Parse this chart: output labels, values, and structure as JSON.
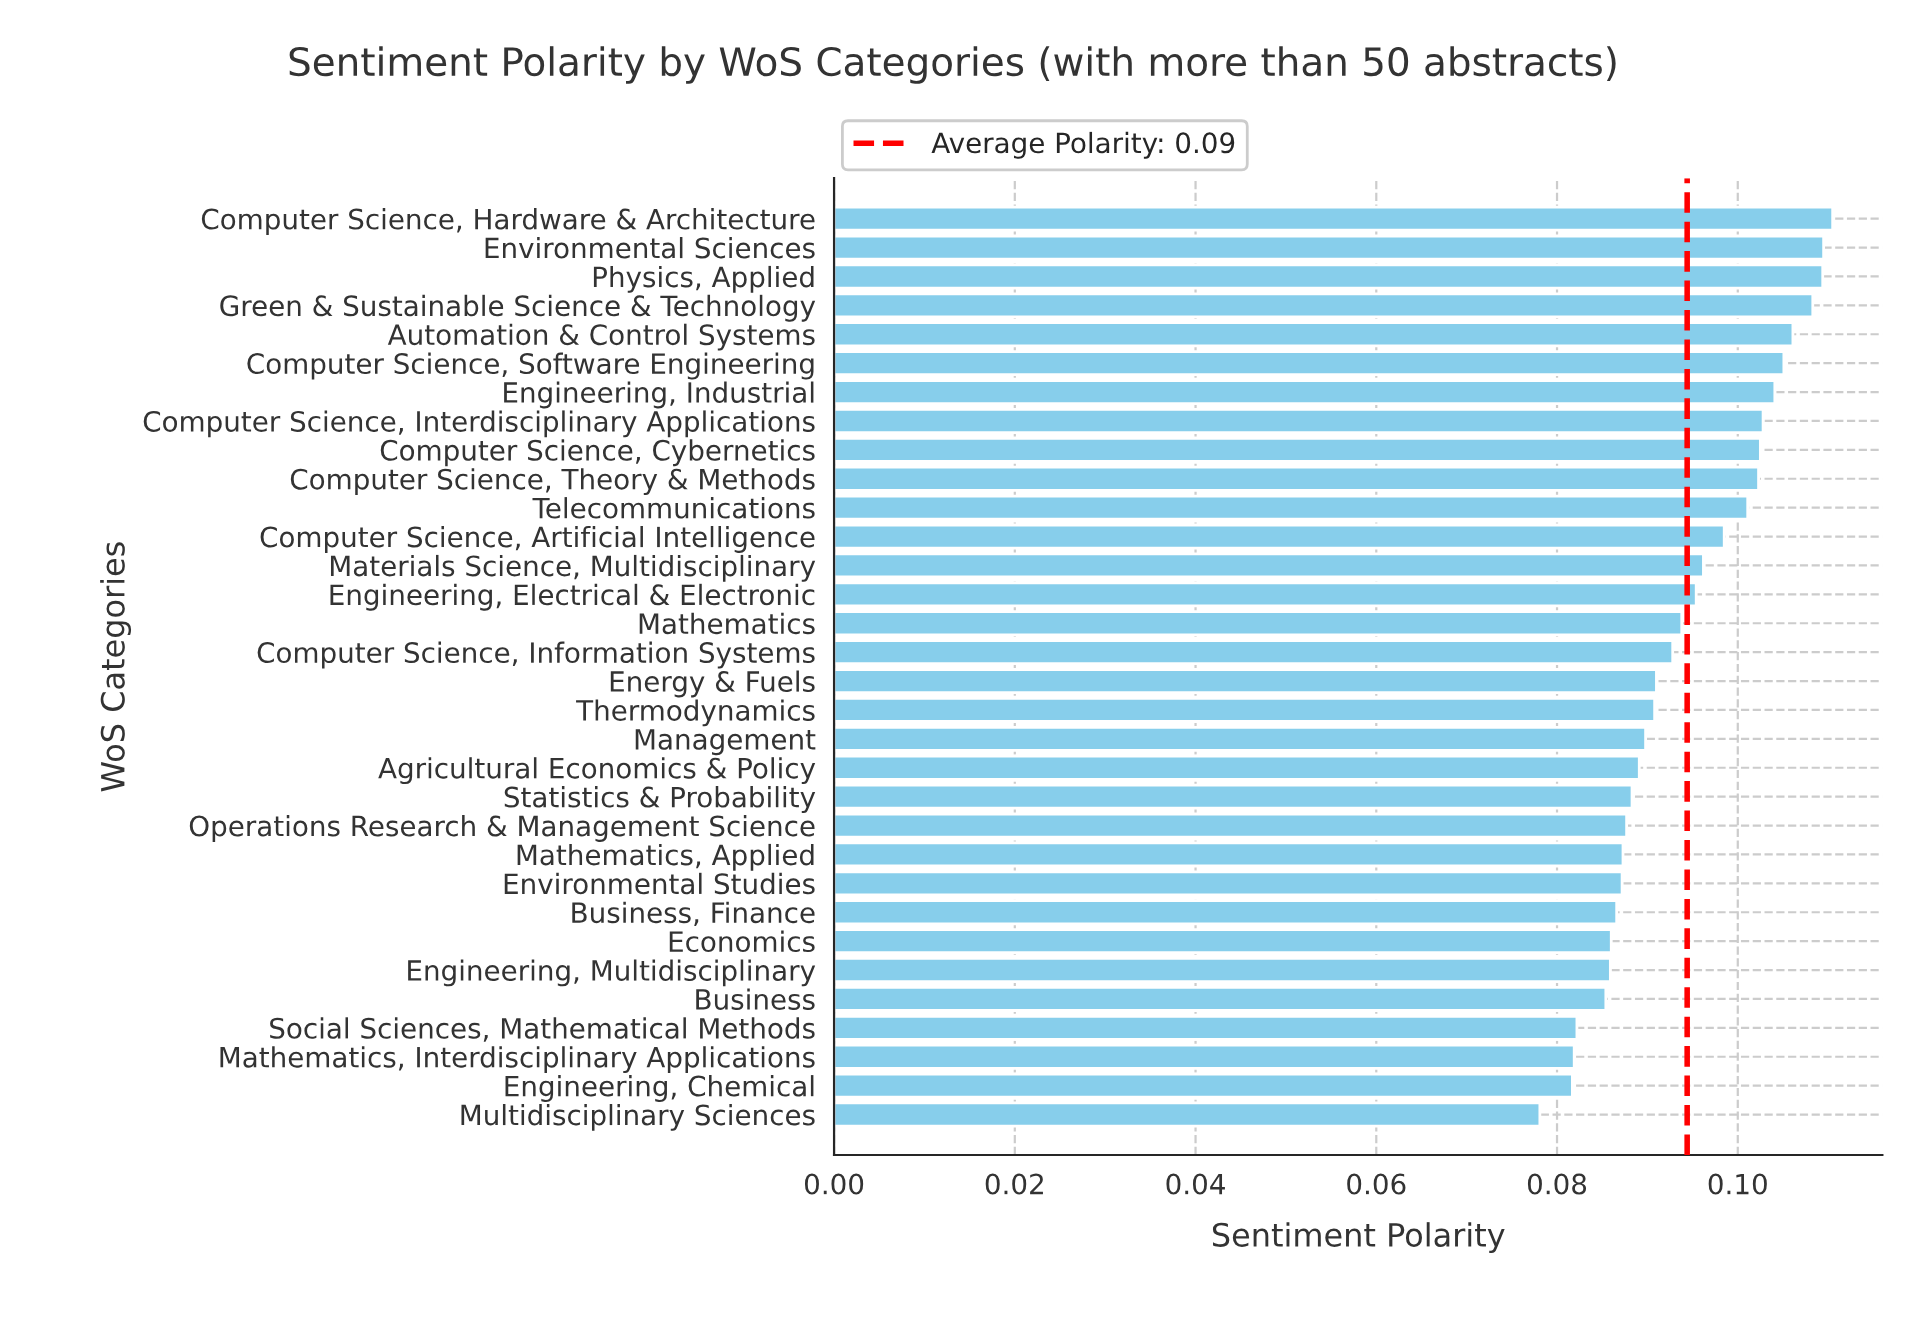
{
  "chart_data": {
    "type": "bar",
    "orientation": "horizontal",
    "title": "Sentiment Polarity by WoS Categories (with more than 50 abstracts)",
    "xlabel": "Sentiment Polarity",
    "ylabel": "WoS Categories",
    "categories": [
      "Computer Science, Hardware & Architecture",
      "Environmental Sciences",
      "Physics, Applied",
      "Green & Sustainable Science & Technology",
      "Automation & Control Systems",
      "Computer Science, Software Engineering",
      "Engineering, Industrial",
      "Computer Science, Interdisciplinary Applications",
      "Computer Science, Cybernetics",
      "Computer Science, Theory & Methods",
      "Telecommunications",
      "Computer Science, Artificial Intelligence",
      "Materials Science, Multidisciplinary",
      "Engineering, Electrical & Electronic",
      "Mathematics",
      "Computer Science, Information Systems",
      "Energy & Fuels",
      "Thermodynamics",
      "Management",
      "Agricultural Economics & Policy",
      "Statistics & Probability",
      "Operations Research & Management Science",
      "Mathematics, Applied",
      "Environmental Studies",
      "Business, Finance",
      "Economics",
      "Engineering, Multidisciplinary",
      "Business",
      "Social Sciences, Mathematical Methods",
      "Mathematics, Interdisciplinary Applications",
      "Engineering, Chemical",
      "Multidisciplinary Sciences"
    ],
    "values": [
      0.1105,
      0.1095,
      0.1094,
      0.1083,
      0.1061,
      0.1051,
      0.1041,
      0.1028,
      0.1025,
      0.1023,
      0.1011,
      0.0985,
      0.0962,
      0.0954,
      0.0938,
      0.0928,
      0.091,
      0.0908,
      0.0898,
      0.0891,
      0.0883,
      0.0877,
      0.0873,
      0.0872,
      0.0866,
      0.086,
      0.0859,
      0.0854,
      0.0822,
      0.0819,
      0.0817,
      0.0781
    ],
    "color": "#87ceeb",
    "xlim": [
      0,
      0.116
    ],
    "xticks": [
      {
        "value": 0,
        "label": "0.00"
      },
      {
        "value": 0.02,
        "label": "0.02"
      },
      {
        "value": 0.04,
        "label": "0.04"
      },
      {
        "value": 0.06,
        "label": "0.06"
      },
      {
        "value": 0.08,
        "label": "0.08"
      },
      {
        "value": 0.1,
        "label": "0.10"
      }
    ],
    "grid": true,
    "legend": "top left",
    "ref_lines": [
      {
        "axis": "x",
        "value": 0.0944,
        "label": "Average Polarity: 0.09",
        "color": "#ff0000",
        "line_style": "dashed"
      }
    ]
  }
}
